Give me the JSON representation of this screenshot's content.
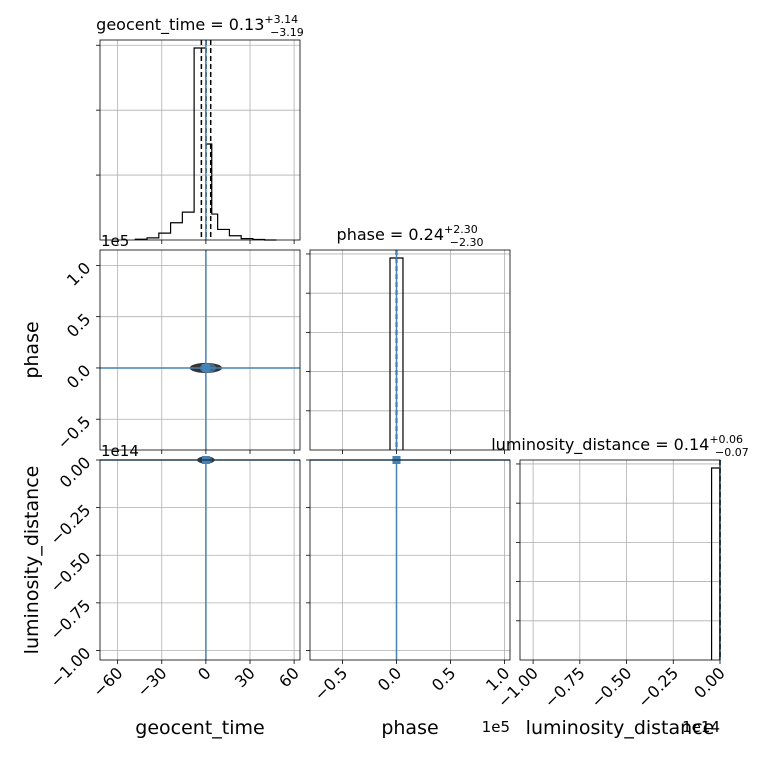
{
  "chart_data": {
    "type": "corner",
    "colors": {
      "samples": "#000000",
      "truth": "#4682b4",
      "grid": "#b0b0b0",
      "frame": "#000000"
    },
    "parameters": [
      "geocent_time",
      "phase",
      "luminosity_distance"
    ],
    "grid": true,
    "truths": {
      "geocent_time": 0,
      "phase": 0,
      "luminosity_distance": 0
    },
    "diagonal": [
      {
        "parameter": "geocent_time",
        "title": {
          "name": "geocent_time",
          "median": "0.13",
          "plus": "+3.14",
          "minus": "−3.19"
        },
        "quantiles": [
          -3.06,
          0.13,
          3.27
        ],
        "xlim": [
          -72,
          64
        ],
        "hist_y_ticks": 3,
        "histogram": {
          "edges": [
            -48,
            -40,
            -32,
            -24,
            -16,
            -8,
            -4,
            0,
            4,
            8,
            16,
            24,
            32,
            40,
            48
          ],
          "counts": [
            0.4,
            1.1,
            3.6,
            9.0,
            14.5,
            100,
            100,
            50,
            13.5,
            5.5,
            2.2,
            0.7,
            0.3,
            0
          ]
        }
      },
      {
        "parameter": "phase",
        "title": {
          "name": "phase",
          "median": "0.24",
          "plus": "+2.30",
          "minus": "−2.30"
        },
        "quantiles": [
          -2.06,
          0.24,
          2.54
        ],
        "xlim": [
          -80000,
          105000
        ],
        "hist_y_ticks": 5,
        "histogram": {
          "edges": [
            -6000,
            0,
            6000
          ],
          "counts": [
            100,
            100
          ]
        }
      },
      {
        "parameter": "luminosity_distance",
        "title": {
          "name": "luminosity_distance",
          "median": "0.14",
          "plus": "+0.06",
          "minus": "−0.07"
        },
        "quantiles": [
          0.07,
          0.14,
          0.2
        ],
        "xlim": [
          -107000000000000.0,
          0
        ],
        "hist_y_ticks": 5,
        "histogram": {
          "edges": [
            -4500000000000.0,
            -100000000000.0
          ],
          "counts": [
            100
          ]
        }
      }
    ],
    "axes": {
      "geocent_time": {
        "label": "geocent_time",
        "ticks": [
          -60,
          -30,
          0,
          30,
          60
        ],
        "tick_labels": [
          "−60",
          "−30",
          "0",
          "30",
          "60"
        ],
        "offset": ""
      },
      "phase": {
        "label": "phase",
        "ticks": [
          -50000,
          0,
          50000,
          100000
        ],
        "tick_labels": [
          "−0.5",
          "0.0",
          "0.5",
          "1.0"
        ],
        "offset": "1e5",
        "ylim": [
          -80000,
          115000
        ],
        "y_ticks": [
          -50000,
          0,
          50000,
          100000
        ],
        "y_tick_labels": [
          "−0.5",
          "0.0",
          "0.5",
          "1.0"
        ]
      },
      "luminosity_distance": {
        "label": "luminosity_distance",
        "ticks": [
          -100000000000000.0,
          -75000000000000.0,
          -50000000000000.0,
          -25000000000000.0,
          0
        ],
        "tick_labels": [
          "−1.00",
          "−0.75",
          "−0.50",
          "−0.25",
          "0.00"
        ],
        "offset": "1e14",
        "ylim": [
          -105000000000000.0,
          0
        ],
        "y_ticks": [
          -100000000000000.0,
          -75000000000000.0,
          -50000000000000.0,
          -25000000000000.0,
          0
        ],
        "y_tick_labels": [
          "−1.00",
          "−0.75",
          "−0.50",
          "−0.25",
          "0.00"
        ]
      }
    },
    "panels_2d": [
      {
        "x": "geocent_time",
        "y": "phase",
        "sample_spread_x": [
          -12,
          10
        ],
        "sample_spread_y": [
          -3000,
          3000
        ]
      },
      {
        "x": "geocent_time",
        "y": "luminosity_distance",
        "sample_spread_x": [
          -6,
          6
        ],
        "sample_spread_y": [
          -1800000000000.0,
          0
        ]
      },
      {
        "x": "phase",
        "y": "luminosity_distance",
        "sample_spread_x": [
          -4000,
          4000
        ],
        "sample_spread_y": [
          -1800000000000.0,
          0
        ]
      }
    ]
  }
}
